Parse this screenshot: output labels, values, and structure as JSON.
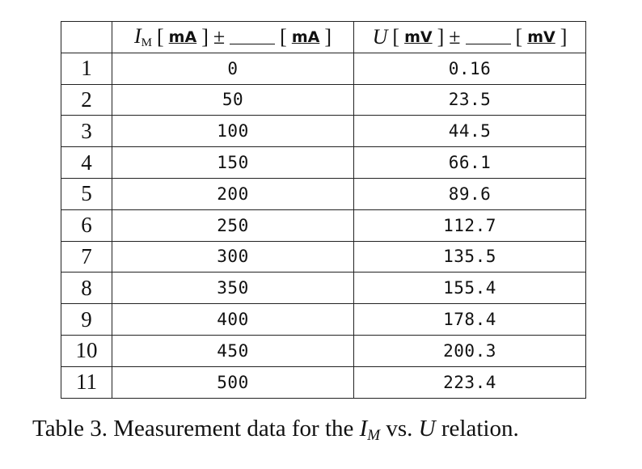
{
  "table": {
    "header": {
      "im_symbol": "I",
      "im_subscript": "M",
      "im_unit": "mA",
      "im_unit2": "mA",
      "pm": "±",
      "u_symbol": "U",
      "u_unit": "mV",
      "u_unit2": "mV"
    },
    "rows": [
      {
        "n": "1",
        "im": "0",
        "u": "0.16"
      },
      {
        "n": "2",
        "im": "50",
        "u": "23.5"
      },
      {
        "n": "3",
        "im": "100",
        "u": "44.5"
      },
      {
        "n": "4",
        "im": "150",
        "u": "66.1"
      },
      {
        "n": "5",
        "im": "200",
        "u": "89.6"
      },
      {
        "n": "6",
        "im": "250",
        "u": "112.7"
      },
      {
        "n": "7",
        "im": "300",
        "u": "135.5"
      },
      {
        "n": "8",
        "im": "350",
        "u": "155.4"
      },
      {
        "n": "9",
        "im": "400",
        "u": "178.4"
      },
      {
        "n": "10",
        "im": "450",
        "u": "200.3"
      },
      {
        "n": "11",
        "im": "500",
        "u": "223.4"
      }
    ]
  },
  "caption": {
    "prefix": "Table 3.",
    "text1": "Measurement data for the",
    "sym1": "I",
    "sub1": "M",
    "text2": "vs.",
    "sym2": "U",
    "text3": "relation."
  }
}
